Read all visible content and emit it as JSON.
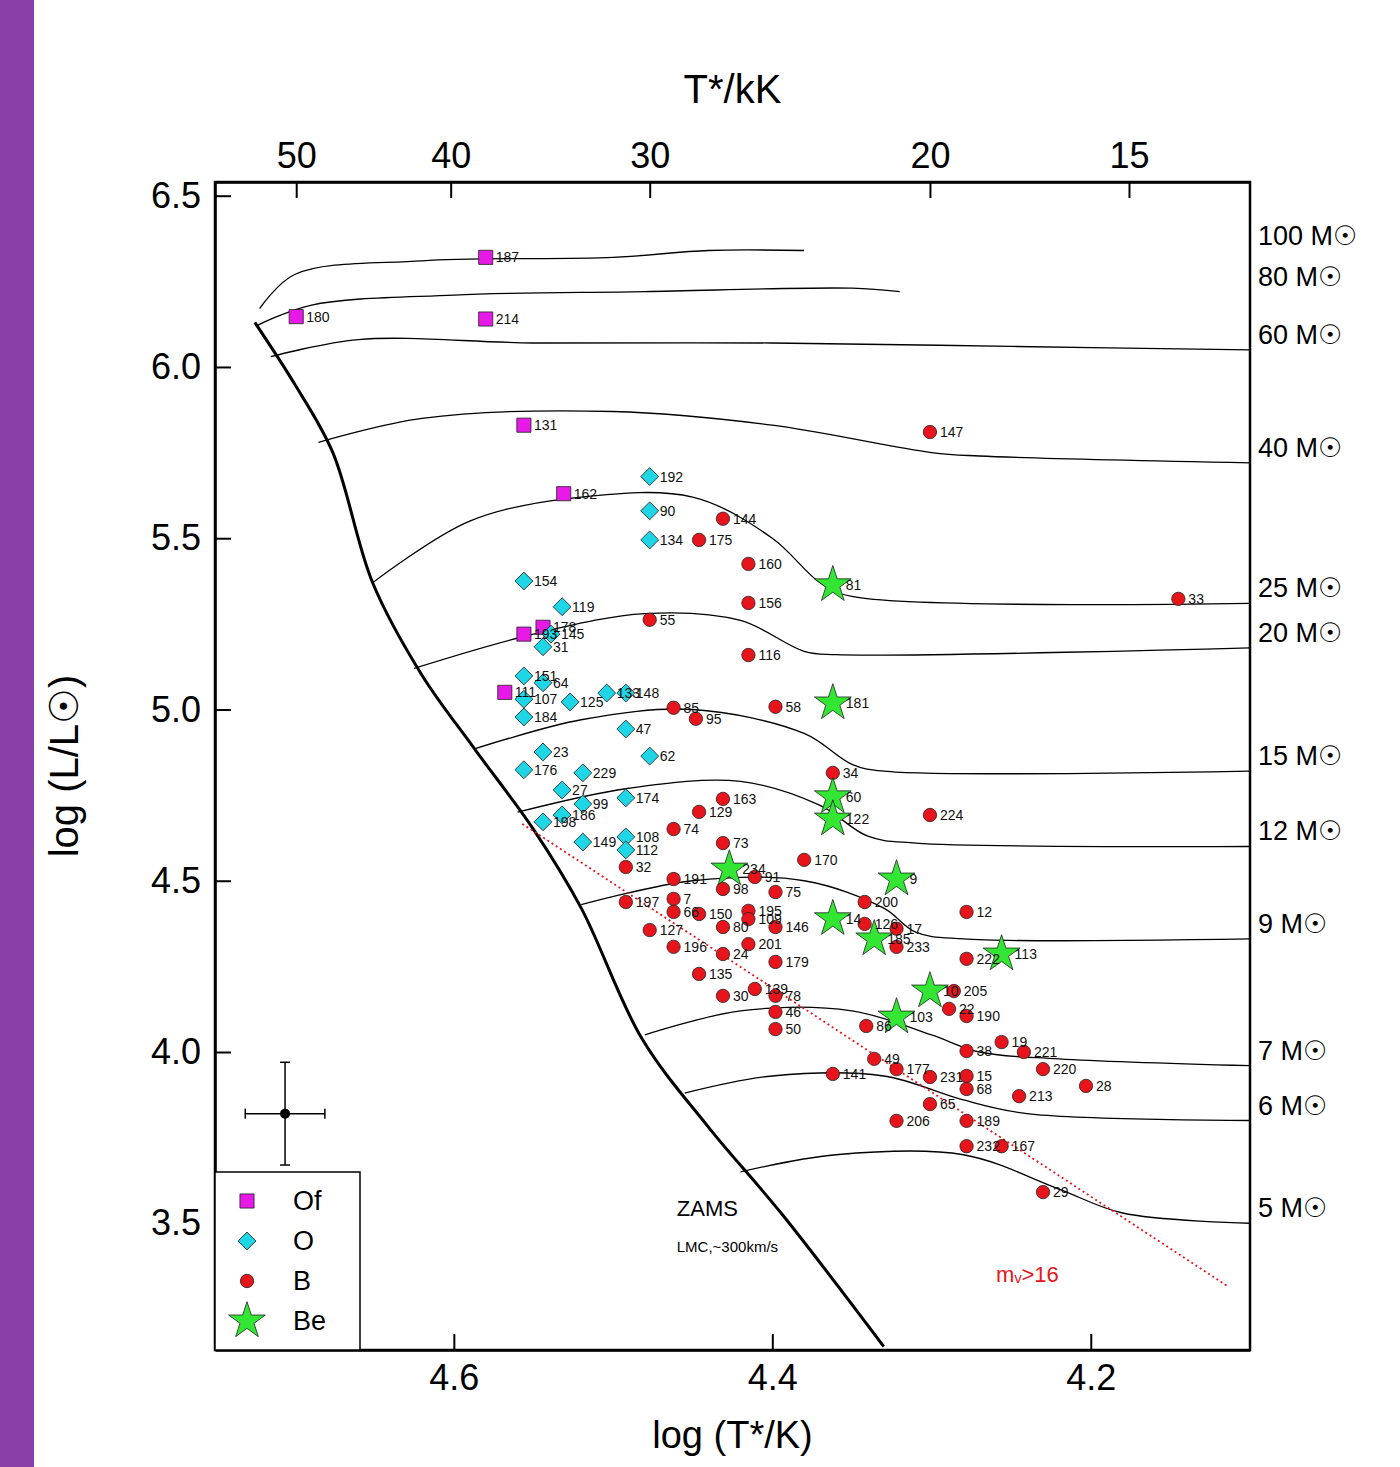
{
  "chart_data": {
    "type": "scatter",
    "x_label": "log (T*/K)",
    "y_label": "log (L/L☉)",
    "x2_label": "T*/kK",
    "xlim": [
      4.75,
      4.1
    ],
    "ylim": [
      3.13,
      6.54
    ],
    "xticks": [
      4.6,
      4.4,
      4.2
    ],
    "yticks": [
      3.5,
      {
        "value": 4,
        "label": "4.0"
      },
      4.5,
      {
        "value": 5,
        "label": "5.0"
      },
      5.5,
      {
        "value": 6,
        "label": "6.0"
      },
      6.5
    ],
    "x2ticks": [
      {
        "value": 4.699,
        "label": "50"
      },
      {
        "value": 4.602,
        "label": "40"
      },
      {
        "value": 4.477,
        "label": "30"
      },
      {
        "value": 4.301,
        "label": "20"
      },
      {
        "value": 4.176,
        "label": "15"
      }
    ],
    "grid": false,
    "legend": "lower left",
    "series": [
      {
        "name": "Of",
        "type": "scatter",
        "marker": "square",
        "color": "#e619e6",
        "x": [
          4.58,
          4.699,
          4.58,
          4.556,
          4.531,
          4.556,
          4.544,
          4.568
        ],
        "values": [
          6.32,
          6.147,
          6.14,
          5.83,
          5.63,
          5.22,
          5.24,
          5.05
        ],
        "labels": [
          "187",
          "180",
          "214",
          "131",
          "162",
          "193",
          "178",
          "111"
        ]
      },
      {
        "name": "O",
        "type": "scatter",
        "marker": "diamond",
        "color": "#1fd6e6",
        "x": [
          4.477,
          4.477,
          4.477,
          4.556,
          4.532,
          4.539,
          4.544,
          4.556,
          4.544,
          4.556,
          4.556,
          4.504,
          4.527,
          4.492,
          4.492,
          4.477,
          4.544,
          4.556,
          4.519,
          4.532,
          4.519,
          4.532,
          4.544,
          4.492,
          4.519,
          4.492,
          4.492
        ],
        "values": [
          5.68,
          5.58,
          5.495,
          5.375,
          5.3,
          5.22,
          5.183,
          5.098,
          5.078,
          5.03,
          4.978,
          5.048,
          5.022,
          5.048,
          4.943,
          4.864,
          4.876,
          4.824,
          4.815,
          4.765,
          4.724,
          4.692,
          4.672,
          4.742,
          4.613,
          4.628,
          4.59
        ],
        "labels": [
          "192",
          "90",
          "134",
          "154",
          "119",
          "145",
          "31",
          "151",
          "64",
          "107",
          "184",
          "133",
          "125",
          "148",
          "47",
          "62",
          "23",
          "176",
          "229",
          "27",
          "99",
          "186",
          "198",
          "174",
          "149",
          "108",
          "112"
        ]
      },
      {
        "name": "B",
        "type": "scatter",
        "marker": "circle",
        "color": "#e8141c",
        "x": [
          4.301,
          4.431,
          4.446,
          4.415,
          4.415,
          4.477,
          4.415,
          4.145,
          4.398,
          4.462,
          4.448,
          4.362,
          4.301,
          4.431,
          4.446,
          4.462,
          4.431,
          4.38,
          4.492,
          4.492,
          4.462,
          4.278,
          4.342,
          4.398,
          4.415,
          4.398,
          4.477,
          4.462,
          4.398,
          4.278,
          4.342,
          4.322,
          4.322,
          4.286,
          4.411,
          4.398,
          4.398,
          4.398,
          4.431,
          4.322,
          4.362,
          4.301,
          4.278,
          4.278,
          4.301,
          4.322,
          4.278,
          4.278,
          4.256,
          4.23,
          4.203,
          4.23,
          4.242,
          4.256,
          4.245,
          4.278,
          4.278,
          4.289,
          4.341,
          4.336,
          4.462,
          4.431,
          4.411,
          4.446,
          4.415,
          4.462,
          4.415,
          4.446,
          4.431,
          4.431
        ],
        "values": [
          5.81,
          5.557,
          5.495,
          5.425,
          5.311,
          5.262,
          5.159,
          5.323,
          5.008,
          5.005,
          4.973,
          4.815,
          4.692,
          4.739,
          4.701,
          4.651,
          4.61,
          4.561,
          4.54,
          4.438,
          4.447,
          4.409,
          4.438,
          4.467,
          4.412,
          4.365,
          4.356,
          4.307,
          4.263,
          4.272,
          4.374,
          4.36,
          4.307,
          4.178,
          4.184,
          4.164,
          4.117,
          4.067,
          4.164,
          3.95,
          3.936,
          3.927,
          3.93,
          3.892,
          3.848,
          3.799,
          3.799,
          3.725,
          3.725,
          3.591,
          3.901,
          3.95,
          4.0,
          4.029,
          3.871,
          4.003,
          4.105,
          4.126,
          4.076,
          3.98,
          4.505,
          4.476,
          4.511,
          4.403,
          4.388,
          4.409,
          4.315,
          4.228,
          4.286,
          4.365
        ],
        "labels": [
          "147",
          "144",
          "175",
          "160",
          "156",
          "55",
          "116",
          "33",
          "58",
          "85",
          "95",
          "34",
          "224",
          "163",
          "129",
          "74",
          "73",
          "170",
          "32",
          "197",
          "7",
          "12",
          "200",
          "75",
          "195",
          "146",
          "127",
          "196",
          "179",
          "222",
          "126",
          "17",
          "233",
          "205",
          "139",
          "78",
          "46",
          "50",
          "30",
          "177",
          "141",
          "231",
          "15",
          "68",
          "65",
          "206",
          "189",
          "232",
          "167",
          "29",
          "28",
          "220",
          "221",
          "19",
          "213",
          "38",
          "190",
          "22",
          "86",
          "49",
          "191",
          "98",
          "91",
          "150",
          "109",
          "66",
          "201",
          "135",
          "24",
          "80"
        ]
      },
      {
        "name": "Be",
        "type": "scatter",
        "marker": "star",
        "color": "#33e633",
        "x": [
          4.362,
          4.362,
          4.362,
          4.362,
          4.427,
          4.322,
          4.362,
          4.336,
          4.256,
          4.301,
          4.322
        ],
        "values": [
          5.364,
          5.019,
          4.745,
          4.68,
          4.534,
          4.505,
          4.389,
          4.33,
          4.286,
          4.178,
          4.102
        ],
        "labels": [
          "81",
          "181",
          "60",
          "122",
          "234",
          "9",
          "14",
          "185",
          "113",
          "10",
          "103"
        ]
      },
      {
        "type": "line",
        "line_style": "thick",
        "color": "#000000",
        "x": [
          4.725,
          4.7,
          4.676,
          4.651,
          4.62,
          4.587,
          4.55,
          4.52,
          4.482,
          4.44,
          4.394,
          4.33
        ],
        "values": [
          6.13,
          5.95,
          5.75,
          5.37,
          5.1,
          4.885,
          4.65,
          4.42,
          4.04,
          3.78,
          3.527,
          3.14
        ]
      },
      {
        "name": "100 M☉",
        "type": "line",
        "line_style": "solid",
        "color": "#000000",
        "x": [
          4.722,
          4.7,
          4.62,
          4.5,
          4.44,
          4.38
        ],
        "values": [
          6.17,
          6.27,
          6.31,
          6.32,
          6.34,
          6.34
        ]
      },
      {
        "name": "80 M☉",
        "type": "line",
        "line_style": "solid",
        "color": "#000000",
        "x": [
          4.724,
          4.69,
          4.6,
          4.48,
          4.35,
          4.32
        ],
        "values": [
          6.12,
          6.18,
          6.21,
          6.22,
          6.23,
          6.22
        ]
      },
      {
        "name": "60 M☉",
        "type": "line",
        "line_style": "solid",
        "color": "#000000",
        "x": [
          4.715,
          4.66,
          4.55,
          4.4,
          4.25,
          4.1
        ],
        "values": [
          6.03,
          6.08,
          6.07,
          6.07,
          6.06,
          6.05
        ]
      },
      {
        "name": "40 M☉",
        "type": "line",
        "line_style": "solid",
        "color": "#000000",
        "x": [
          4.685,
          4.62,
          4.5,
          4.4,
          4.3,
          4.27,
          4.1
        ],
        "values": [
          5.78,
          5.85,
          5.87,
          5.83,
          5.75,
          5.74,
          5.72
        ]
      },
      {
        "name": "25 M☉",
        "type": "line",
        "line_style": "solid",
        "color": "#000000",
        "x": [
          4.651,
          4.59,
          4.52,
          4.45,
          4.4,
          4.37,
          4.35,
          4.1
        ],
        "values": [
          5.37,
          5.55,
          5.62,
          5.62,
          5.5,
          5.37,
          5.33,
          5.31
        ]
      },
      {
        "name": "20 M☉",
        "type": "line",
        "line_style": "solid",
        "color": "#000000",
        "x": [
          4.625,
          4.55,
          4.48,
          4.42,
          4.38,
          4.36,
          4.1
        ],
        "values": [
          5.12,
          5.22,
          5.28,
          5.26,
          5.17,
          5.16,
          5.18
        ]
      },
      {
        "name": "15 M☉",
        "type": "line",
        "line_style": "solid",
        "color": "#000000",
        "x": [
          4.587,
          4.52,
          4.45,
          4.38,
          4.35,
          4.33,
          4.1
        ],
        "values": [
          4.885,
          4.97,
          5.0,
          4.93,
          4.84,
          4.82,
          4.82
        ]
      },
      {
        "name": "12 M☉",
        "type": "line",
        "line_style": "solid",
        "color": "#000000",
        "x": [
          4.56,
          4.49,
          4.42,
          4.37,
          4.34,
          4.31,
          4.1
        ],
        "values": [
          4.7,
          4.77,
          4.79,
          4.72,
          4.63,
          4.61,
          4.6
        ]
      },
      {
        "name": "9 M☉",
        "type": "line",
        "line_style": "solid",
        "color": "#000000",
        "x": [
          4.52,
          4.45,
          4.38,
          4.33,
          4.31,
          4.28,
          4.1
        ],
        "values": [
          4.43,
          4.5,
          4.5,
          4.42,
          4.35,
          4.33,
          4.33
        ]
      },
      {
        "name": "7 M☉",
        "type": "line",
        "line_style": "solid",
        "color": "#000000",
        "x": [
          4.48,
          4.42,
          4.35,
          4.3,
          4.27,
          4.22,
          4.1
        ],
        "values": [
          4.05,
          4.12,
          4.12,
          4.05,
          4.0,
          3.98,
          3.96
        ]
      },
      {
        "name": "6 M☉",
        "type": "line",
        "line_style": "solid",
        "color": "#000000",
        "x": [
          4.455,
          4.4,
          4.33,
          4.28,
          4.24,
          4.1
        ],
        "values": [
          3.88,
          3.93,
          3.93,
          3.86,
          3.82,
          3.8
        ]
      },
      {
        "name": "5 M☉",
        "type": "line",
        "line_style": "solid",
        "color": "#000000",
        "x": [
          4.42,
          4.36,
          4.28,
          4.22,
          4.18,
          4.1
        ],
        "values": [
          3.65,
          3.7,
          3.7,
          3.6,
          3.53,
          3.5
        ]
      },
      {
        "name": "mᵥ>16",
        "type": "line",
        "line_style": "dotted",
        "color": "#e8141c",
        "x": [
          4.557,
          4.1133
        ],
        "values": [
          4.666,
          3.314
        ]
      }
    ],
    "annotations": [
      {
        "text": "ZAMS",
        "x": 4.46,
        "y": 3.52
      },
      {
        "text": "LMC,~300km/s",
        "x": 4.46,
        "y": 3.416
      }
    ],
    "error_bar": {
      "x": 4.706,
      "y": 3.82,
      "x_error": 0.025,
      "y_error": 0.15
    }
  }
}
